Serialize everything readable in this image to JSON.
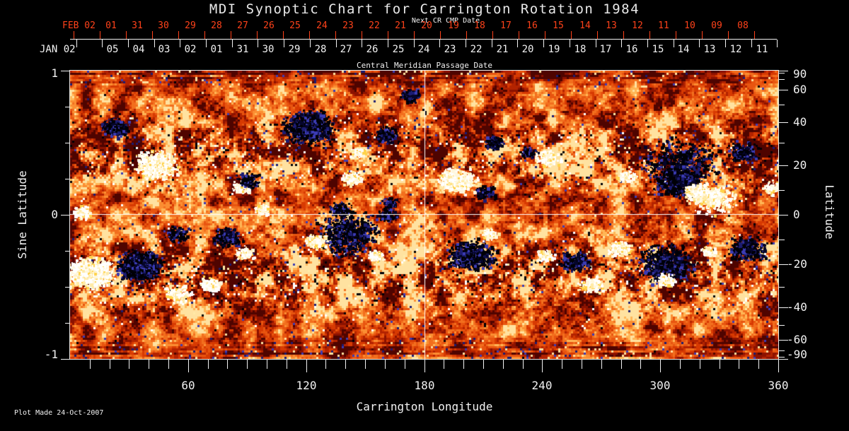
{
  "title": "MDI Synoptic Chart for Carrington Rotation 1984",
  "top_axis": {
    "next_cr_label": "Next CR CMP Date",
    "red_row_start": "FEB 02",
    "red_dates": [
      "01",
      "31",
      "30",
      "29",
      "28",
      "27",
      "26",
      "25",
      "24",
      "23",
      "22",
      "21",
      "20",
      "19",
      "18",
      "17",
      "16",
      "15",
      "14",
      "13",
      "12",
      "11",
      "10",
      "09",
      "08"
    ],
    "white_row_start": "JAN 02",
    "white_dates": [
      "05",
      "04",
      "03",
      "02",
      "01",
      "31",
      "30",
      "29",
      "28",
      "27",
      "26",
      "25",
      "24",
      "23",
      "22",
      "21",
      "20",
      "19",
      "18",
      "17",
      "16",
      "15",
      "14",
      "13",
      "12",
      "11"
    ],
    "axis_title": "Central Meridian Passage Date"
  },
  "left_axis": {
    "title": "Sine Latitude",
    "tick_labels": [
      {
        "label": "1",
        "value": 1
      },
      {
        "label": "0",
        "value": 0
      },
      {
        "label": "-1",
        "value": -1
      }
    ],
    "minor_tick_step": 0.25
  },
  "right_axis": {
    "title": "Latitude",
    "tick_labels": [
      {
        "label": "90",
        "lat": 90
      },
      {
        "label": "60",
        "lat": 60
      },
      {
        "label": "40",
        "lat": 40
      },
      {
        "label": "20",
        "lat": 20
      },
      {
        "label": "0",
        "lat": 0
      },
      {
        "label": "-20",
        "lat": -20
      },
      {
        "label": "-40",
        "lat": -40
      },
      {
        "label": "-60",
        "lat": -60
      },
      {
        "label": "-90",
        "lat": -90
      }
    ],
    "minor_tick_step_deg": 10
  },
  "bottom_axis": {
    "title": "Carrington Longitude",
    "tick_labels": [
      {
        "label": "60",
        "lon": 60
      },
      {
        "label": "120",
        "lon": 120
      },
      {
        "label": "180",
        "lon": 180
      },
      {
        "label": "240",
        "lon": 240
      },
      {
        "label": "300",
        "lon": 300
      },
      {
        "label": "360",
        "lon": 360
      }
    ],
    "minor_tick_step_deg": 10
  },
  "footer": {
    "plot_made": "Plot Made 24-Oct-2007"
  },
  "colors": {
    "background": "#000000",
    "date_red": "#ff421a",
    "axis_white": "#f2f2f2",
    "title_gray": "#e8e8e8"
  },
  "chart_data": {
    "type": "heatmap",
    "title": "MDI Synoptic Chart for Carrington Rotation 1984",
    "xlabel": "Carrington Longitude",
    "x_range": [
      0,
      360
    ],
    "ylabel_left": "Sine Latitude",
    "y_range_sine_latitude": [
      -1,
      1
    ],
    "ylabel_right": "Latitude",
    "lat_range": [
      -90,
      90
    ],
    "grid_crosshair": {
      "longitude": 180,
      "sine_latitude": 0
    },
    "noise_seed": 19840213,
    "field_palette": {
      "base": [
        "#4f0400",
        "#8c1200",
        "#b32300",
        "#d73a02",
        "#e85510",
        "#f26f1e",
        "#fb8e32",
        "#ffb656",
        "#ffe2a0"
      ],
      "negative": [
        "#000006",
        "#05052a",
        "#1c1c72",
        "#3c3cb4"
      ],
      "positive": [
        "#ffffff",
        "#fff7dc",
        "#ffeaa6",
        "#ffd24a"
      ],
      "crosshair": "#ffffff"
    },
    "active_regions": [
      {
        "lon": 22.7,
        "slat": 0.61,
        "pol": "neg",
        "r": 20,
        "d": 0.8
      },
      {
        "lon": 43.5,
        "slat": 0.35,
        "pol": "pos",
        "r": 30,
        "d": 0.9
      },
      {
        "lon": 120.8,
        "slat": 0.61,
        "pol": "neg",
        "r": 36,
        "d": 0.9
      },
      {
        "lon": 160.4,
        "slat": 0.56,
        "pol": "neg",
        "r": 18,
        "d": 0.65
      },
      {
        "lon": 172.3,
        "slat": 0.83,
        "pol": "neg",
        "r": 15,
        "d": 0.5
      },
      {
        "lon": 87.4,
        "slat": 0.2,
        "pol": "pos",
        "r": 15,
        "d": 0.65
      },
      {
        "lon": 143.1,
        "slat": 0.26,
        "pol": "pos",
        "r": 16,
        "d": 0.7
      },
      {
        "lon": 196.4,
        "slat": 0.24,
        "pol": "pos",
        "r": 26,
        "d": 1.0
      },
      {
        "lon": 214.3,
        "slat": 0.51,
        "pol": "neg",
        "r": 15,
        "d": 0.7
      },
      {
        "lon": 232.3,
        "slat": 0.44,
        "pol": "neg",
        "r": 13,
        "d": 0.6
      },
      {
        "lon": 242.0,
        "slat": 0.4,
        "pol": "pos",
        "r": 17,
        "d": 0.8
      },
      {
        "lon": 282.6,
        "slat": 0.27,
        "pol": "pos",
        "r": 13,
        "d": 0.6
      },
      {
        "lon": 309.6,
        "slat": 0.24,
        "pol": "neg",
        "r": 32,
        "d": 0.9
      },
      {
        "lon": 309.6,
        "slat": 0.36,
        "pol": "neg",
        "r": 55,
        "d": 0.2
      },
      {
        "lon": 318.6,
        "slat": 0.16,
        "pol": "pos",
        "r": 18,
        "d": 1.4
      },
      {
        "lon": 327.6,
        "slat": 0.12,
        "pol": "pos",
        "r": 35,
        "d": 0.28
      },
      {
        "lon": 342.0,
        "slat": 0.44,
        "pol": "neg",
        "r": 22,
        "d": 0.5
      },
      {
        "lon": 356.4,
        "slat": 0.19,
        "pol": "pos",
        "r": 14,
        "d": 0.6
      },
      {
        "lon": 5.8,
        "slat": 0.02,
        "pol": "pos",
        "r": 14,
        "d": 0.7
      },
      {
        "lon": 97.5,
        "slat": 0.04,
        "pol": "pos",
        "r": 13,
        "d": 0.5
      },
      {
        "lon": 90.3,
        "slat": 0.24,
        "pol": "neg",
        "r": 16,
        "d": 0.55
      },
      {
        "lon": 146.0,
        "slat": 0.44,
        "pol": "pos",
        "r": 12,
        "d": 0.55
      },
      {
        "lon": 137.0,
        "slat": 0.04,
        "pol": "neg",
        "r": 16,
        "d": 0.6
      },
      {
        "lon": 162.1,
        "slat": 0.09,
        "pol": "neg",
        "r": 13,
        "d": 0.5
      },
      {
        "lon": 160.3,
        "slat": 0.0,
        "pol": "neg",
        "r": 15,
        "d": 0.55
      },
      {
        "lon": 210.7,
        "slat": 0.16,
        "pol": "neg",
        "r": 15,
        "d": 0.6
      },
      {
        "lon": 9.3,
        "slat": -0.4,
        "pol": "pos",
        "r": 32,
        "d": 1.3
      },
      {
        "lon": 34.5,
        "slat": -0.35,
        "pol": "neg",
        "r": 32,
        "d": 1.1
      },
      {
        "lon": 54.3,
        "slat": -0.54,
        "pol": "pos",
        "r": 20,
        "d": 0.45
      },
      {
        "lon": 54.3,
        "slat": -0.13,
        "pol": "neg",
        "r": 17,
        "d": 0.5
      },
      {
        "lon": 79.5,
        "slat": -0.15,
        "pol": "neg",
        "r": 20,
        "d": 0.8
      },
      {
        "lon": 71.2,
        "slat": -0.48,
        "pol": "pos",
        "r": 15,
        "d": 0.9
      },
      {
        "lon": 88.5,
        "slat": -0.26,
        "pol": "pos",
        "r": 13,
        "d": 0.8
      },
      {
        "lon": 140.6,
        "slat": -0.13,
        "pol": "neg",
        "r": 45,
        "d": 0.42
      },
      {
        "lon": 124.4,
        "slat": -0.18,
        "pol": "pos",
        "r": 16,
        "d": 0.9
      },
      {
        "lon": 155.7,
        "slat": -0.28,
        "pol": "pos",
        "r": 12,
        "d": 0.8
      },
      {
        "lon": 203.5,
        "slat": -0.28,
        "pol": "neg",
        "r": 33,
        "d": 0.8
      },
      {
        "lon": 241.3,
        "slat": -0.28,
        "pol": "pos",
        "r": 13,
        "d": 0.8
      },
      {
        "lon": 256.4,
        "slat": -0.32,
        "pol": "neg",
        "r": 20,
        "d": 0.8
      },
      {
        "lon": 264.7,
        "slat": -0.48,
        "pol": "pos",
        "r": 16,
        "d": 0.9
      },
      {
        "lon": 279.0,
        "slat": -0.23,
        "pol": "pos",
        "r": 16,
        "d": 0.9
      },
      {
        "lon": 302.4,
        "slat": -0.33,
        "pol": "neg",
        "r": 40,
        "d": 0.5
      },
      {
        "lon": 302.4,
        "slat": -0.45,
        "pol": "pos",
        "r": 14,
        "d": 0.9
      },
      {
        "lon": 324.0,
        "slat": -0.25,
        "pol": "pos",
        "r": 11,
        "d": 0.8
      },
      {
        "lon": 343.8,
        "slat": -0.23,
        "pol": "neg",
        "r": 26,
        "d": 0.7
      },
      {
        "lon": 212.5,
        "slat": -0.13,
        "pol": "pos",
        "r": 13,
        "d": 0.6
      }
    ]
  }
}
